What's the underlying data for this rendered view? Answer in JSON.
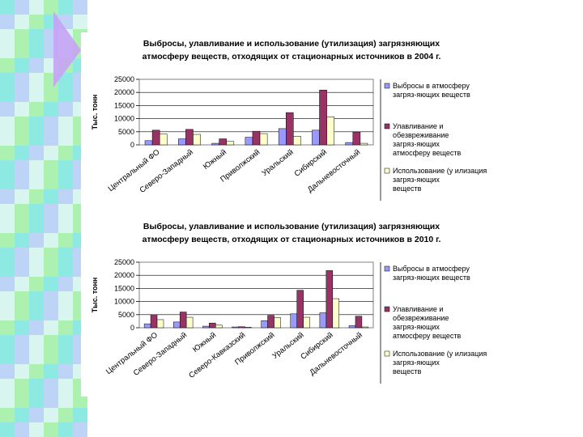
{
  "colors": {
    "background": "#ffffff",
    "strip_cyan": "#7fe8e0",
    "strip_green": "#a6f0a6",
    "strip_light": "#d8f4f0",
    "strip_blue": "#b8cef8",
    "triangle": "#c7a3f5",
    "series_emissions": "#9999ff",
    "series_capture": "#993366",
    "series_use": "#ffffcc"
  },
  "chart_data": [
    {
      "type": "bar",
      "title_lines": [
        "Выбросы, улавливание и использование (утилизация) загрязняющих",
        "атмосферу веществ, отходящих от стационарных источников в 2004 г."
      ],
      "ylabel": "Тыс. тонн",
      "ylim": [
        0,
        25000
      ],
      "yticks": [
        "0",
        "5000",
        "10000",
        "15000",
        "20000",
        "25000"
      ],
      "categories": [
        "Центральный ФО",
        "Северо-Западный",
        "Южный",
        "Приволжский",
        "Уральский",
        "Сибирский",
        "Дальневосточный"
      ],
      "series": [
        {
          "name": "Выбросы в атмосферу загряз-яющих веществ",
          "values": [
            1600,
            2300,
            600,
            2900,
            6200,
            5600,
            900
          ]
        },
        {
          "name": "Улавливание и обезвреживание загряз-яющих атмосферу веществ",
          "values": [
            5600,
            5900,
            2300,
            5200,
            12300,
            20900,
            4900
          ]
        },
        {
          "name": "Использование (у илизация) загряз-яющих веществ",
          "values": [
            4100,
            4000,
            1300,
            4300,
            3300,
            10700,
            600
          ]
        }
      ],
      "legend_lines": [
        [
          "Выбросы в атмосферу",
          "загряз-яющих веществ"
        ],
        [
          "Улавливание и",
          "обезвреживание",
          "загряз-яющих",
          "атмосферу веществ"
        ],
        [
          "Использование (у илизация",
          "загряз-яющих",
          "веществ"
        ]
      ],
      "legend": "right",
      "grid": "horizontal"
    },
    {
      "type": "bar",
      "title_lines": [
        "Выбросы, улавливание и использование (утилизация) загрязняющих",
        "атмосферу веществ, отходящих от стационарных источников в 2010 г."
      ],
      "ylabel": "Тыс. тонн",
      "ylim": [
        0,
        25000
      ],
      "yticks": [
        "0",
        "5000",
        "10000",
        "15000",
        "20000",
        "25000"
      ],
      "categories": [
        "Центральный ФО",
        "Северо-Западный",
        "Южный",
        "Северо-Кавказский",
        "Приволжский",
        "Уральский",
        "Сибирский",
        "Дальневосточный"
      ],
      "series": [
        {
          "name": "Выбросы в атмосферу загряз-яющих веществ",
          "values": [
            1500,
            2200,
            600,
            300,
            2700,
            5300,
            5700,
            800
          ]
        },
        {
          "name": "Улавливание и обезвреживание загряз-яющих атмосферу веществ",
          "values": [
            5000,
            6000,
            1800,
            400,
            4700,
            14300,
            21800,
            4400
          ]
        },
        {
          "name": "Использование (у илизация) загряз-яющих веществ",
          "values": [
            3100,
            4000,
            1000,
            200,
            3900,
            4000,
            11100,
            300
          ]
        }
      ],
      "legend_lines": [
        [
          "Выбросы в атмосферу",
          "загряз-яющих веществ"
        ],
        [
          "Улавливание и",
          "обезвреживание",
          "загряз-яющих",
          "атмосферу веществ"
        ],
        [
          "Использование (у илизация",
          "загряз-яющих",
          "веществ"
        ]
      ],
      "legend": "right",
      "grid": "horizontal"
    }
  ]
}
